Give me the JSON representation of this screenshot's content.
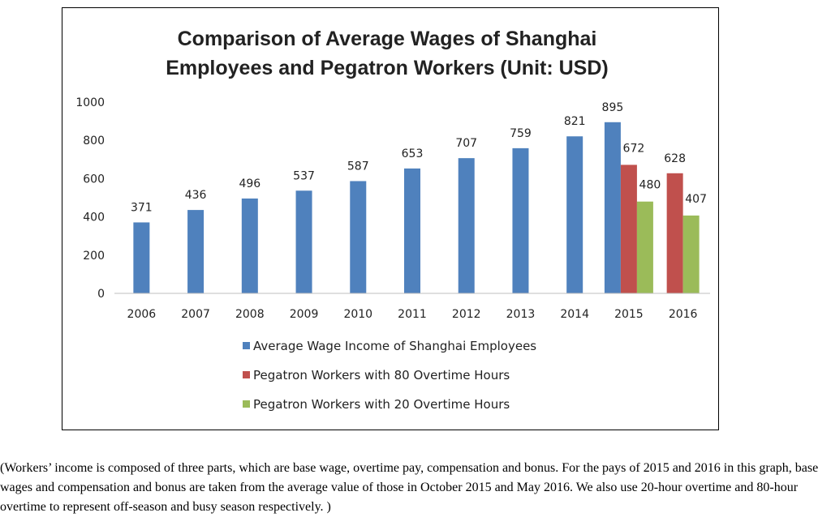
{
  "chart_data": {
    "type": "bar",
    "title_lines": [
      "Comparison of Average Wages of Shanghai",
      "Employees and Pegatron Workers (Unit: USD)"
    ],
    "categories": [
      "2006",
      "2007",
      "2008",
      "2009",
      "2010",
      "2011",
      "2012",
      "2013",
      "2014",
      "2015",
      "2016"
    ],
    "series": [
      {
        "name": "Average Wage Income of Shanghai Employees",
        "color": "#4f81bd",
        "values": [
          371,
          436,
          496,
          537,
          587,
          653,
          707,
          759,
          821,
          895,
          null
        ]
      },
      {
        "name": "Pegatron Workers with 80 Overtime Hours",
        "color": "#c0504d",
        "values": [
          null,
          null,
          null,
          null,
          null,
          null,
          null,
          null,
          null,
          672,
          628
        ]
      },
      {
        "name": "Pegatron Workers with 20 Overtime Hours",
        "color": "#9bbb59",
        "values": [
          null,
          null,
          null,
          null,
          null,
          null,
          null,
          null,
          null,
          480,
          407
        ]
      }
    ],
    "ylim": [
      0,
      1000
    ],
    "yticks": [
      "0",
      "200",
      "400",
      "600",
      "800",
      "1000"
    ],
    "grid": false,
    "legend_position": "bottom"
  },
  "caption": "(Workers’ income is composed of three parts, which are base wage, overtime pay, compensation and bonus. For the pays of 2015 and 2016 in this graph, base wages and compensation and bonus are taken from the average value of those in October 2015 and May 2016. We also use 20-hour overtime and 80-hour overtime to represent off-season and busy season respectively. )"
}
